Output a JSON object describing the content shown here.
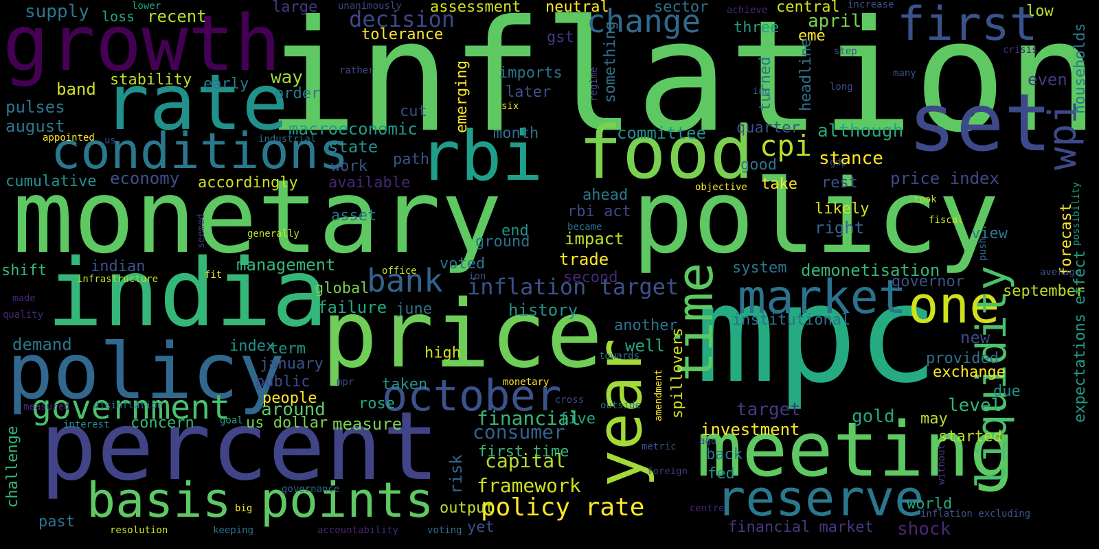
{
  "palette": {
    "background": "#000000",
    "colormap": "viridis"
  },
  "words": [
    {
      "text": "inflation",
      "color": "#5ec962"
    },
    {
      "text": "monetary",
      "color": "#5ec962"
    },
    {
      "text": "policy",
      "color": "#5ec962"
    },
    {
      "text": "growth",
      "color": "#440154"
    },
    {
      "text": "rate",
      "color": "#21918c"
    },
    {
      "text": "rbi",
      "color": "#1f9e89"
    },
    {
      "text": "food",
      "color": "#7ad151"
    },
    {
      "text": "set",
      "color": "#3e4989"
    },
    {
      "text": "conditions",
      "color": "#2a788e"
    },
    {
      "text": "first",
      "color": "#3b528b"
    },
    {
      "text": "india",
      "color": "#35b779"
    },
    {
      "text": "price",
      "color": "#6ece58"
    },
    {
      "text": "mpc",
      "color": "#25ab82"
    },
    {
      "text": "policy",
      "color": "#31688e"
    },
    {
      "text": "percent",
      "color": "#414487"
    },
    {
      "text": "year",
      "color": "#a2da37"
    },
    {
      "text": "time",
      "color": "#5ec962"
    },
    {
      "text": "meeting",
      "color": "#5ec962"
    },
    {
      "text": "market",
      "color": "#2c728e"
    },
    {
      "text": "one",
      "color": "#d0e11c"
    },
    {
      "text": "liquidity",
      "color": "#4ac16d"
    },
    {
      "text": "wpi",
      "color": "#3e4989"
    },
    {
      "text": "basis points",
      "color": "#5ec962"
    },
    {
      "text": "october",
      "color": "#3b528b"
    },
    {
      "text": "reserve",
      "color": "#2a788e"
    },
    {
      "text": "government",
      "color": "#4ac16d"
    },
    {
      "text": "bank",
      "color": "#33638d"
    },
    {
      "text": "policy rate",
      "color": "#fde725"
    },
    {
      "text": "change",
      "color": "#31688e"
    },
    {
      "text": "cpi",
      "color": "#b5de2b"
    },
    {
      "text": "inflation target",
      "color": "#3b528b"
    },
    {
      "text": "decision",
      "color": "#3e4989"
    },
    {
      "text": "framework",
      "color": "#d0e11c"
    },
    {
      "text": "capital",
      "color": "#b5de2b"
    },
    {
      "text": "financial",
      "color": "#35b779"
    },
    {
      "text": "consumer",
      "color": "#33638d"
    },
    {
      "text": "supply",
      "color": "#2a788e"
    },
    {
      "text": "loss",
      "color": "#20a486"
    },
    {
      "text": "lower",
      "color": "#22a884"
    },
    {
      "text": "recent",
      "color": "#b5de2b"
    },
    {
      "text": "large",
      "color": "#443983"
    },
    {
      "text": "unanimously",
      "color": "#3e4989"
    },
    {
      "text": "assessment",
      "color": "#d0e11c"
    },
    {
      "text": "neutral",
      "color": "#fde725"
    },
    {
      "text": "sector",
      "color": "#2c728e"
    },
    {
      "text": "achieve",
      "color": "#482878"
    },
    {
      "text": "central",
      "color": "#d0e11c"
    },
    {
      "text": "increase",
      "color": "#3b528b"
    },
    {
      "text": "low",
      "color": "#bddf26"
    },
    {
      "text": "tolerance",
      "color": "#fde725"
    },
    {
      "text": "three",
      "color": "#1f9e89"
    },
    {
      "text": "eme",
      "color": "#fde725"
    },
    {
      "text": "april",
      "color": "#7ad151"
    },
    {
      "text": "gst",
      "color": "#443983"
    },
    {
      "text": "step",
      "color": "#3b528b"
    },
    {
      "text": "crisis",
      "color": "#482878"
    },
    {
      "text": "band",
      "color": "#d0e11c"
    },
    {
      "text": "stability",
      "color": "#bddf26"
    },
    {
      "text": "way",
      "color": "#a2da37"
    },
    {
      "text": "imports",
      "color": "#2c728e"
    },
    {
      "text": "rather",
      "color": "#3e4989"
    },
    {
      "text": "regime",
      "color": "#3e4989"
    },
    {
      "text": "something",
      "color": "#2c728e"
    },
    {
      "text": "turned",
      "color": "#2c728e"
    },
    {
      "text": "headline",
      "color": "#2c728e"
    },
    {
      "text": "many",
      "color": "#3b528b"
    },
    {
      "text": "even",
      "color": "#443983"
    },
    {
      "text": "households",
      "color": "#2a788e"
    },
    {
      "text": "pulses",
      "color": "#2a788e"
    },
    {
      "text": "early",
      "color": "#2a788e"
    },
    {
      "text": "order",
      "color": "#2a788e"
    },
    {
      "text": "later",
      "color": "#3b528b"
    },
    {
      "text": "ing",
      "color": "#31688e"
    },
    {
      "text": "long",
      "color": "#3b528b"
    },
    {
      "text": "august",
      "color": "#2a788e"
    },
    {
      "text": "cut",
      "color": "#3e4989"
    },
    {
      "text": "six",
      "color": "#fde725"
    },
    {
      "text": "emerging",
      "color": "#fde725"
    },
    {
      "text": "quarter",
      "color": "#3b528b"
    },
    {
      "text": "appointed",
      "color": "#fde725"
    },
    {
      "text": "us",
      "color": "#3b528b"
    },
    {
      "text": "industrial",
      "color": "#31688e"
    },
    {
      "text": "macroeconomic",
      "color": "#1f9e89"
    },
    {
      "text": "month",
      "color": "#2c728e"
    },
    {
      "text": "committee",
      "color": "#21918c"
    },
    {
      "text": "although",
      "color": "#22a884"
    },
    {
      "text": "state",
      "color": "#21918c"
    },
    {
      "text": "work",
      "color": "#3b528b"
    },
    {
      "text": "path",
      "color": "#3b528b"
    },
    {
      "text": "good",
      "color": "#2c728e"
    },
    {
      "text": "gdp",
      "color": "#3b528b"
    },
    {
      "text": "stance",
      "color": "#fde725"
    },
    {
      "text": "cumulative",
      "color": "#21918c"
    },
    {
      "text": "economy",
      "color": "#3b528b"
    },
    {
      "text": "accordingly",
      "color": "#d0e11c"
    },
    {
      "text": "available",
      "color": "#482878"
    },
    {
      "text": "take",
      "color": "#fde725"
    },
    {
      "text": "rest",
      "color": "#3b528b"
    },
    {
      "text": "price index",
      "color": "#3e4989"
    },
    {
      "text": "objective",
      "color": "#fde725"
    },
    {
      "text": "forecast",
      "color": "#fde725"
    },
    {
      "text": "took",
      "color": "#bddf26"
    },
    {
      "text": "ahead",
      "color": "#2a788e"
    },
    {
      "text": "rbi act",
      "color": "#3e4989"
    },
    {
      "text": "asset",
      "color": "#2c728e"
    },
    {
      "text": "likely",
      "color": "#d0e11c"
    },
    {
      "text": "fiscal",
      "color": "#d0e11c"
    },
    {
      "text": "possibility",
      "color": "#1f9e89"
    },
    {
      "text": "became",
      "color": "#2c728e"
    },
    {
      "text": "generally",
      "color": "#bddf26"
    },
    {
      "text": "seemed",
      "color": "#443983"
    },
    {
      "text": "end",
      "color": "#21918c"
    },
    {
      "text": "right",
      "color": "#31688e"
    },
    {
      "text": "view",
      "color": "#2a788e"
    },
    {
      "text": "impact",
      "color": "#bddf26"
    },
    {
      "text": "ground",
      "color": "#2c728e"
    },
    {
      "text": "push",
      "color": "#31688e"
    },
    {
      "text": "indian",
      "color": "#3b528b"
    },
    {
      "text": "shift",
      "color": "#35b779"
    },
    {
      "text": "management",
      "color": "#35b779"
    },
    {
      "text": "office",
      "color": "#d0e11c"
    },
    {
      "text": "trade",
      "color": "#fde725"
    },
    {
      "text": "voted",
      "color": "#2c728e"
    },
    {
      "text": "system",
      "color": "#2a788e"
    },
    {
      "text": "demonetisation",
      "color": "#35b779"
    },
    {
      "text": "average",
      "color": "#3b528b"
    },
    {
      "text": "infrastructure",
      "color": "#bddf26"
    },
    {
      "text": "fit",
      "color": "#fde725"
    },
    {
      "text": "ion",
      "color": "#3b528b"
    },
    {
      "text": "second",
      "color": "#482878"
    },
    {
      "text": "governor",
      "color": "#3b528b"
    },
    {
      "text": "made",
      "color": "#482878"
    },
    {
      "text": "global",
      "color": "#7ad151"
    },
    {
      "text": "september",
      "color": "#bddf26"
    },
    {
      "text": "failure",
      "color": "#22a884"
    },
    {
      "text": "june",
      "color": "#2c728e"
    },
    {
      "text": "history",
      "color": "#21918c"
    },
    {
      "text": "quality",
      "color": "#482878"
    },
    {
      "text": "institutional",
      "color": "#2c728e"
    },
    {
      "text": "expectations effect",
      "color": "#1f9e89"
    },
    {
      "text": "another",
      "color": "#2c728e"
    },
    {
      "text": "demand",
      "color": "#2a788e"
    },
    {
      "text": "index",
      "color": "#21918c"
    },
    {
      "text": "well",
      "color": "#22a884"
    },
    {
      "text": "new",
      "color": "#3e4989"
    },
    {
      "text": "term",
      "color": "#21918c"
    },
    {
      "text": "high",
      "color": "#d0e11c"
    },
    {
      "text": "provided",
      "color": "#2c728e"
    },
    {
      "text": "january",
      "color": "#3b528b"
    },
    {
      "text": "towards",
      "color": "#2c728e"
    },
    {
      "text": "exchange",
      "color": "#fde725"
    },
    {
      "text": "public",
      "color": "#3e4989"
    },
    {
      "text": "taken",
      "color": "#21918c"
    },
    {
      "text": "spillovers",
      "color": "#d0e11c"
    },
    {
      "text": "people",
      "color": "#fde725"
    },
    {
      "text": "mpr",
      "color": "#3e4989"
    },
    {
      "text": "monetary",
      "color": "#fde725"
    },
    {
      "text": "amendment",
      "color": "#fde725"
    },
    {
      "text": "due",
      "color": "#21918c"
    },
    {
      "text": "measured",
      "color": "#482878"
    },
    {
      "text": "disinflation",
      "color": "#2c728e"
    },
    {
      "text": "rose",
      "color": "#22a884"
    },
    {
      "text": "cross",
      "color": "#3e4989"
    },
    {
      "text": "level",
      "color": "#35b779"
    },
    {
      "text": "around",
      "color": "#5ec962"
    },
    {
      "text": "target",
      "color": "#443983"
    },
    {
      "text": "five",
      "color": "#22a884"
    },
    {
      "text": "outside",
      "color": "#2c728e"
    },
    {
      "text": "may",
      "color": "#bddf26"
    },
    {
      "text": "gold",
      "color": "#22a884"
    },
    {
      "text": "interest",
      "color": "#21918c"
    },
    {
      "text": "goal",
      "color": "#22a884"
    },
    {
      "text": "concern",
      "color": "#35b779"
    },
    {
      "text": "us dollar",
      "color": "#7ad151"
    },
    {
      "text": "measure",
      "color": "#7ad151"
    },
    {
      "text": "investment",
      "color": "#fde725"
    },
    {
      "text": "started",
      "color": "#bddf26"
    },
    {
      "text": "challenge",
      "color": "#35b779"
    },
    {
      "text": "risk",
      "color": "#31688e"
    },
    {
      "text": "first time",
      "color": "#35b779"
    },
    {
      "text": "metric",
      "color": "#3b528b"
    },
    {
      "text": "ago",
      "color": "#3e4989"
    },
    {
      "text": "back",
      "color": "#2a788e"
    },
    {
      "text": "without",
      "color": "#443983"
    },
    {
      "text": "foreign",
      "color": "#443983"
    },
    {
      "text": "fed",
      "color": "#21918c"
    },
    {
      "text": "world",
      "color": "#22a884"
    },
    {
      "text": "governance",
      "color": "#31688e"
    },
    {
      "text": "big",
      "color": "#fde725"
    },
    {
      "text": "output",
      "color": "#bddf26"
    },
    {
      "text": "centre",
      "color": "#482878"
    },
    {
      "text": "inflation excluding",
      "color": "#3b528b"
    },
    {
      "text": "past",
      "color": "#2c728e"
    },
    {
      "text": "yet",
      "color": "#3b528b"
    },
    {
      "text": "resolution",
      "color": "#d0e11c"
    },
    {
      "text": "keeping",
      "color": "#2c728e"
    },
    {
      "text": "accountability",
      "color": "#482878"
    },
    {
      "text": "voting",
      "color": "#2c728e"
    },
    {
      "text": "financial market",
      "color": "#443983"
    },
    {
      "text": "shock",
      "color": "#482878"
    }
  ]
}
